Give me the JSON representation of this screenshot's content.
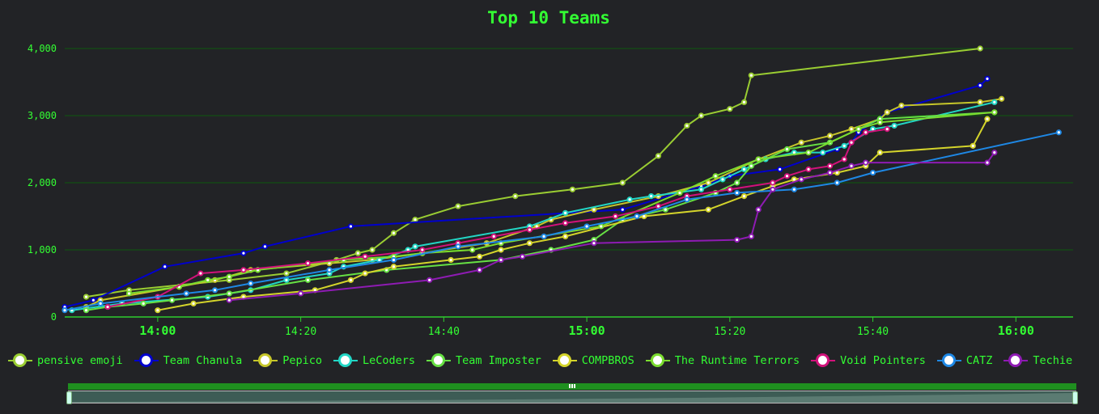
{
  "chart_data": {
    "type": "line",
    "title": "Top 10 Teams",
    "ylim": [
      0,
      4000
    ],
    "yticks": [
      0,
      1000,
      2000,
      3000,
      4000
    ],
    "ytick_labels": [
      "0",
      "1,000",
      "2,000",
      "3,000",
      "4,000"
    ],
    "xlim": [
      "13:47",
      "16:08"
    ],
    "xticks": [
      "14:00",
      "14:20",
      "14:40",
      "15:00",
      "15:20",
      "15:40",
      "16:00"
    ],
    "xticks_major": [
      "14:00",
      "15:00",
      "16:00"
    ],
    "grid": true,
    "legend_position": "bottom",
    "series": [
      {
        "name": "pensive emoji",
        "color": "#9acd32",
        "points": [
          [
            "13:50",
            300
          ],
          [
            "13:56",
            400
          ],
          [
            "14:10",
            550
          ],
          [
            "14:18",
            650
          ],
          [
            "14:25",
            850
          ],
          [
            "14:28",
            950
          ],
          [
            "14:30",
            1000
          ],
          [
            "14:33",
            1250
          ],
          [
            "14:36",
            1450
          ],
          [
            "14:42",
            1650
          ],
          [
            "14:50",
            1800
          ],
          [
            "14:58",
            1900
          ],
          [
            "15:05",
            2000
          ],
          [
            "15:10",
            2400
          ],
          [
            "15:14",
            2850
          ],
          [
            "15:16",
            3000
          ],
          [
            "15:20",
            3100
          ],
          [
            "15:22",
            3200
          ],
          [
            "15:23",
            3600
          ],
          [
            "15:55",
            4000
          ]
        ]
      },
      {
        "name": "Team Chanula",
        "color": "#0000cd",
        "points": [
          [
            "13:47",
            150
          ],
          [
            "13:51",
            250
          ],
          [
            "14:01",
            750
          ],
          [
            "14:12",
            950
          ],
          [
            "14:15",
            1050
          ],
          [
            "14:27",
            1350
          ],
          [
            "15:05",
            1600
          ],
          [
            "15:16",
            1950
          ],
          [
            "15:20",
            2100
          ],
          [
            "15:27",
            2200
          ],
          [
            "15:35",
            2500
          ],
          [
            "15:37",
            2600
          ],
          [
            "15:38",
            2750
          ],
          [
            "15:42",
            3050
          ],
          [
            "15:55",
            3450
          ],
          [
            "15:56",
            3550
          ]
        ]
      },
      {
        "name": "Pepico",
        "color": "#c6c62a",
        "points": [
          [
            "13:50",
            150
          ],
          [
            "13:52",
            250
          ],
          [
            "14:03",
            450
          ],
          [
            "14:08",
            550
          ],
          [
            "14:13",
            700
          ],
          [
            "14:24",
            800
          ],
          [
            "14:30",
            850
          ],
          [
            "14:37",
            950
          ],
          [
            "14:46",
            1100
          ],
          [
            "14:53",
            1350
          ],
          [
            "14:55",
            1450
          ],
          [
            "15:01",
            1600
          ],
          [
            "15:10",
            1800
          ],
          [
            "15:17",
            2000
          ],
          [
            "15:24",
            2350
          ],
          [
            "15:30",
            2600
          ],
          [
            "15:34",
            2700
          ],
          [
            "15:37",
            2800
          ],
          [
            "15:41",
            2950
          ],
          [
            "15:42",
            3050
          ],
          [
            "15:44",
            3150
          ],
          [
            "15:55",
            3200
          ],
          [
            "15:58",
            3250
          ]
        ]
      },
      {
        "name": "LeCoders",
        "color": "#22d6c5",
        "points": [
          [
            "13:48",
            100
          ],
          [
            "13:55",
            200
          ],
          [
            "14:07",
            300
          ],
          [
            "14:13",
            400
          ],
          [
            "14:18",
            550
          ],
          [
            "14:24",
            650
          ],
          [
            "14:26",
            750
          ],
          [
            "14:31",
            850
          ],
          [
            "14:35",
            1000
          ],
          [
            "14:36",
            1050
          ],
          [
            "14:52",
            1350
          ],
          [
            "14:57",
            1550
          ],
          [
            "15:06",
            1750
          ],
          [
            "15:09",
            1800
          ],
          [
            "15:16",
            1900
          ],
          [
            "15:19",
            2050
          ],
          [
            "15:22",
            2200
          ],
          [
            "15:25",
            2350
          ],
          [
            "15:29",
            2450
          ],
          [
            "15:33",
            2450
          ],
          [
            "15:36",
            2550
          ],
          [
            "15:40",
            2800
          ],
          [
            "15:43",
            2850
          ],
          [
            "15:57",
            3200
          ]
        ]
      },
      {
        "name": "Team Imposter",
        "color": "#66e043",
        "points": [
          [
            "13:50",
            100
          ],
          [
            "13:53",
            150
          ],
          [
            "13:58",
            200
          ],
          [
            "14:02",
            250
          ],
          [
            "14:10",
            350
          ],
          [
            "14:21",
            550
          ],
          [
            "14:32",
            700
          ],
          [
            "14:48",
            850
          ],
          [
            "14:55",
            1000
          ],
          [
            "15:01",
            1150
          ],
          [
            "15:05",
            1450
          ],
          [
            "15:11",
            1600
          ],
          [
            "15:18",
            1850
          ],
          [
            "15:21",
            2000
          ],
          [
            "15:23",
            2250
          ],
          [
            "15:28",
            2500
          ],
          [
            "15:34",
            2600
          ],
          [
            "15:38",
            2800
          ],
          [
            "15:41",
            2950
          ],
          [
            "15:57",
            3050
          ]
        ]
      },
      {
        "name": "COMPBROS",
        "color": "#d4d42b",
        "points": [
          [
            "14:00",
            100
          ],
          [
            "14:05",
            200
          ],
          [
            "14:12",
            300
          ],
          [
            "14:22",
            400
          ],
          [
            "14:27",
            550
          ],
          [
            "14:29",
            650
          ],
          [
            "14:33",
            750
          ],
          [
            "14:41",
            850
          ],
          [
            "14:45",
            900
          ],
          [
            "14:48",
            1000
          ],
          [
            "14:52",
            1100
          ],
          [
            "14:57",
            1200
          ],
          [
            "15:08",
            1500
          ],
          [
            "15:17",
            1600
          ],
          [
            "15:22",
            1800
          ],
          [
            "15:26",
            1950
          ],
          [
            "15:29",
            2050
          ],
          [
            "15:35",
            2150
          ],
          [
            "15:39",
            2250
          ],
          [
            "15:41",
            2450
          ],
          [
            "15:54",
            2550
          ],
          [
            "15:56",
            2950
          ]
        ]
      },
      {
        "name": "The Runtime Terrors",
        "color": "#7bdc2f",
        "points": [
          [
            "13:56",
            350
          ],
          [
            "14:03",
            450
          ],
          [
            "14:07",
            550
          ],
          [
            "14:10",
            600
          ],
          [
            "14:14",
            700
          ],
          [
            "14:26",
            850
          ],
          [
            "14:33",
            900
          ],
          [
            "14:37",
            950
          ],
          [
            "14:44",
            1000
          ],
          [
            "14:48",
            1100
          ],
          [
            "15:02",
            1350
          ],
          [
            "15:13",
            1850
          ],
          [
            "15:18",
            2100
          ],
          [
            "15:24",
            2350
          ],
          [
            "15:31",
            2450
          ],
          [
            "15:38",
            2800
          ],
          [
            "15:41",
            2900
          ],
          [
            "15:57",
            3050
          ]
        ]
      },
      {
        "name": "Void Pointers",
        "color": "#d1127a",
        "points": [
          [
            "13:53",
            150
          ],
          [
            "14:00",
            300
          ],
          [
            "14:06",
            650
          ],
          [
            "14:12",
            700
          ],
          [
            "14:21",
            800
          ],
          [
            "14:29",
            900
          ],
          [
            "14:37",
            1000
          ],
          [
            "14:42",
            1100
          ],
          [
            "14:47",
            1200
          ],
          [
            "14:52",
            1300
          ],
          [
            "14:57",
            1400
          ],
          [
            "15:04",
            1500
          ],
          [
            "15:10",
            1650
          ],
          [
            "15:14",
            1800
          ],
          [
            "15:20",
            1900
          ],
          [
            "15:26",
            2000
          ],
          [
            "15:28",
            2100
          ],
          [
            "15:31",
            2200
          ],
          [
            "15:34",
            2250
          ],
          [
            "15:36",
            2350
          ],
          [
            "15:37",
            2600
          ],
          [
            "15:39",
            2750
          ],
          [
            "15:42",
            2800
          ]
        ]
      },
      {
        "name": "CATZ",
        "color": "#1e88e5",
        "points": [
          [
            "13:47",
            100
          ],
          [
            "13:52",
            200
          ],
          [
            "14:04",
            350
          ],
          [
            "14:08",
            400
          ],
          [
            "14:13",
            500
          ],
          [
            "14:24",
            700
          ],
          [
            "14:33",
            850
          ],
          [
            "14:42",
            1050
          ],
          [
            "14:54",
            1200
          ],
          [
            "15:00",
            1350
          ],
          [
            "15:07",
            1500
          ],
          [
            "15:14",
            1750
          ],
          [
            "15:21",
            1850
          ],
          [
            "15:29",
            1900
          ],
          [
            "15:35",
            2000
          ],
          [
            "15:40",
            2150
          ],
          [
            "16:06",
            2750
          ]
        ]
      },
      {
        "name": "Techie",
        "color": "#8e1bb3",
        "points": [
          [
            "14:10",
            250
          ],
          [
            "14:20",
            350
          ],
          [
            "14:38",
            550
          ],
          [
            "14:45",
            700
          ],
          [
            "14:48",
            850
          ],
          [
            "14:51",
            900
          ],
          [
            "15:01",
            1100
          ],
          [
            "15:21",
            1150
          ],
          [
            "15:23",
            1200
          ],
          [
            "15:24",
            1600
          ],
          [
            "15:26",
            1900
          ],
          [
            "15:30",
            2050
          ],
          [
            "15:34",
            2150
          ],
          [
            "15:37",
            2250
          ],
          [
            "15:39",
            2300
          ],
          [
            "15:56",
            2300
          ],
          [
            "15:57",
            2450
          ]
        ]
      }
    ]
  },
  "navigator": {
    "grip": "drag-handle-icon"
  }
}
